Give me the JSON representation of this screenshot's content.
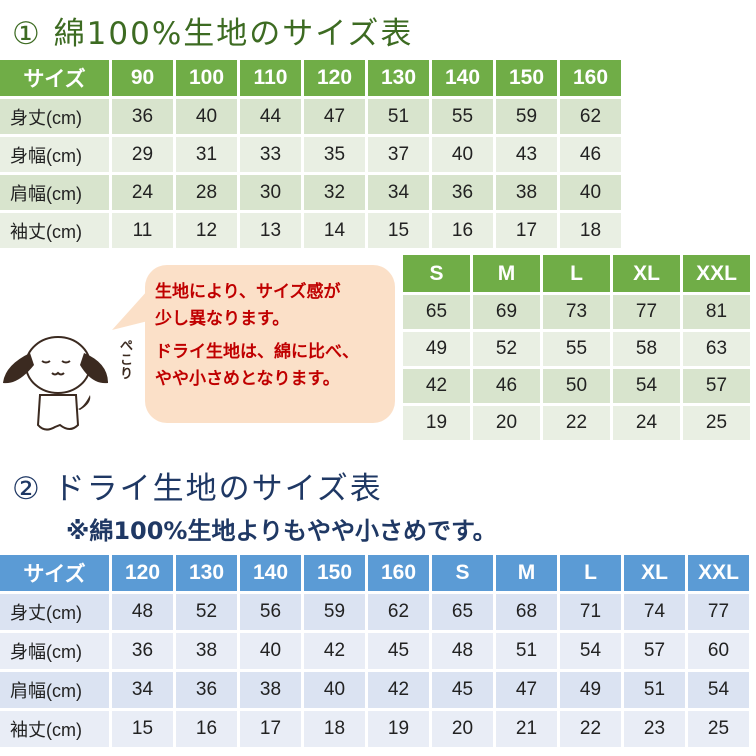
{
  "title1": "① 綿100%生地のサイズ表",
  "table1": {
    "header": [
      "サイズ",
      "90",
      "100",
      "110",
      "120",
      "130",
      "140",
      "150",
      "160"
    ],
    "rows": [
      [
        "身丈(cm)",
        "36",
        "40",
        "44",
        "47",
        "51",
        "55",
        "59",
        "62"
      ],
      [
        "身幅(cm)",
        "29",
        "31",
        "33",
        "35",
        "37",
        "40",
        "43",
        "46"
      ],
      [
        "肩幅(cm)",
        "24",
        "28",
        "30",
        "32",
        "34",
        "36",
        "38",
        "40"
      ],
      [
        "袖丈(cm)",
        "11",
        "12",
        "13",
        "14",
        "15",
        "16",
        "17",
        "18"
      ]
    ]
  },
  "table1b": {
    "header": [
      "S",
      "M",
      "L",
      "XL",
      "XXL"
    ],
    "rows": [
      [
        "65",
        "69",
        "73",
        "77",
        "81"
      ],
      [
        "49",
        "52",
        "55",
        "58",
        "63"
      ],
      [
        "42",
        "46",
        "50",
        "54",
        "57"
      ],
      [
        "19",
        "20",
        "22",
        "24",
        "25"
      ]
    ]
  },
  "bubble": {
    "line1": "生地により、サイズ感が",
    "line2": "少し異なります。",
    "line3": "ドライ生地は、綿に比べ、",
    "line4": "やや小さめとなります。"
  },
  "dog_caption": "ぺこり",
  "title2": "② ドライ生地のサイズ表",
  "subtitle2": "※綿100%生地よりもやや小さめです。",
  "table2": {
    "header": [
      "サイズ",
      "120",
      "130",
      "140",
      "150",
      "160",
      "S",
      "M",
      "L",
      "XL",
      "XXL"
    ],
    "rows": [
      [
        "身丈(cm)",
        "48",
        "52",
        "56",
        "59",
        "62",
        "65",
        "68",
        "71",
        "74",
        "77"
      ],
      [
        "身幅(cm)",
        "36",
        "38",
        "40",
        "42",
        "45",
        "48",
        "51",
        "54",
        "57",
        "60"
      ],
      [
        "肩幅(cm)",
        "34",
        "36",
        "38",
        "40",
        "42",
        "45",
        "47",
        "49",
        "51",
        "54"
      ],
      [
        "袖丈(cm)",
        "15",
        "16",
        "17",
        "18",
        "19",
        "20",
        "21",
        "22",
        "23",
        "25"
      ]
    ]
  },
  "colors": {
    "green": "#70ad47",
    "blue": "#5b9bd5",
    "title1": "#3d6b22",
    "title2": "#1f3864",
    "bubble_text": "#c00000"
  }
}
